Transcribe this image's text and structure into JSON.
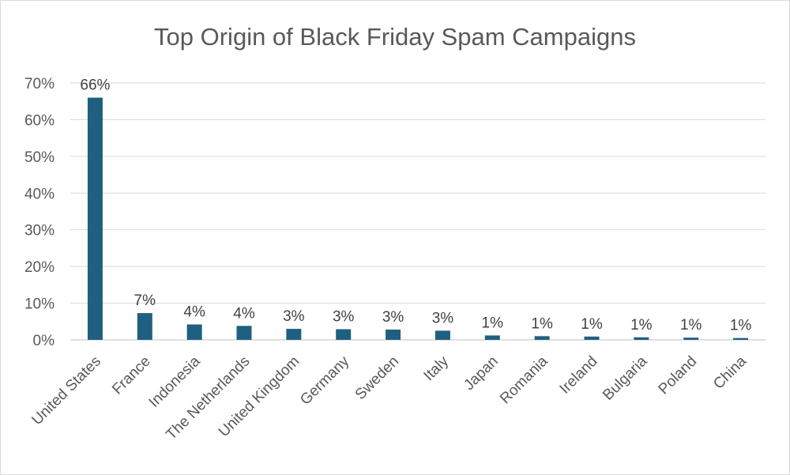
{
  "chart_data": {
    "type": "bar",
    "title": "Top Origin of Black Friday Spam Campaigns",
    "xlabel": "",
    "ylabel": "",
    "categories": [
      "United States",
      "France",
      "Indonesia",
      "The Netherlands",
      "United Kingdom",
      "Germany",
      "Sweden",
      "Italy",
      "Japan",
      "Romania",
      "Ireland",
      "Bulgaria",
      "Poland",
      "China"
    ],
    "values": [
      66,
      7.3,
      4.2,
      3.8,
      3.0,
      2.9,
      2.8,
      2.5,
      1.2,
      1.0,
      0.9,
      0.7,
      0.6,
      0.5
    ],
    "data_labels": [
      "66%",
      "7%",
      "4%",
      "4%",
      "3%",
      "3%",
      "3%",
      "3%",
      "1%",
      "1%",
      "1%",
      "1%",
      "1%",
      "1%"
    ],
    "ylim": [
      0,
      70
    ],
    "yticks": [
      0,
      10,
      20,
      30,
      40,
      50,
      60,
      70
    ],
    "ytick_labels": [
      "0%",
      "10%",
      "20%",
      "30%",
      "40%",
      "50%",
      "60%",
      "70%"
    ],
    "grid": true,
    "legend": "none",
    "bar_color": "#1f5f7f"
  }
}
